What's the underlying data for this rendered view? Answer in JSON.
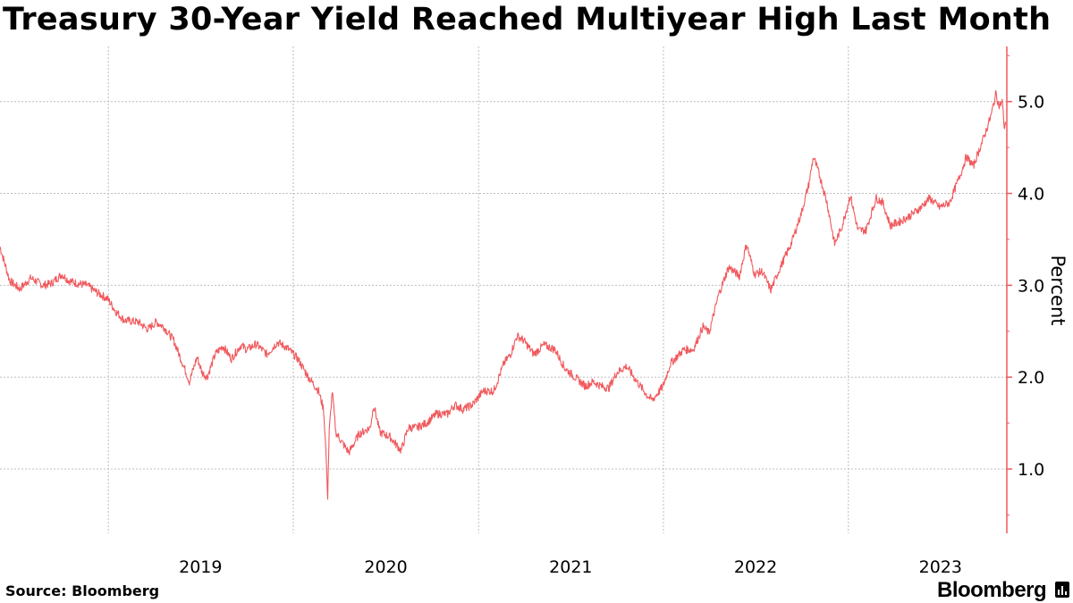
{
  "title": "Treasury 30-Year Yield Reached Multiyear High Last Month",
  "source": "Source:  Bloomberg",
  "brand": "Bloomberg",
  "colors": {
    "line": "#f0595d",
    "axis": "#f0595d",
    "grid": "#bdbdbd",
    "text": "#000000"
  },
  "chart_data": {
    "type": "line",
    "title": "Treasury 30-Year Yield Reached Multiyear High Last Month",
    "xlabel": "",
    "ylabel": "Percent",
    "xlim": [
      "2018-06-01",
      "2023-11-10"
    ],
    "ylim": [
      0.3,
      5.6
    ],
    "yticks": [
      1.0,
      2.0,
      3.0,
      4.0,
      5.0
    ],
    "ytick_labels": [
      "1.0",
      "2.0",
      "3.0",
      "4.0",
      "5.0"
    ],
    "xticks": [
      "2019-01-01",
      "2020-01-01",
      "2021-01-01",
      "2022-01-01",
      "2023-01-01"
    ],
    "xtick_labels": [
      "2019",
      "2020",
      "2021",
      "2022",
      "2023"
    ],
    "grid": true,
    "y_axis_side": "right",
    "series": [
      {
        "name": "",
        "points": [
          [
            "2018-06-01",
            3.42
          ],
          [
            "2018-06-20",
            3.05
          ],
          [
            "2018-07-10",
            2.96
          ],
          [
            "2018-08-01",
            3.08
          ],
          [
            "2018-08-25",
            3.0
          ],
          [
            "2018-09-10",
            3.02
          ],
          [
            "2018-10-01",
            3.12
          ],
          [
            "2018-10-15",
            3.05
          ],
          [
            "2018-11-01",
            3.02
          ],
          [
            "2018-11-20",
            3.0
          ],
          [
            "2018-12-10",
            2.92
          ],
          [
            "2018-12-31",
            2.85
          ],
          [
            "2019-01-15",
            2.72
          ],
          [
            "2019-02-01",
            2.62
          ],
          [
            "2019-03-01",
            2.6
          ],
          [
            "2019-03-20",
            2.52
          ],
          [
            "2019-04-05",
            2.6
          ],
          [
            "2019-04-20",
            2.55
          ],
          [
            "2019-05-10",
            2.4
          ],
          [
            "2019-05-31",
            2.1
          ],
          [
            "2019-06-10",
            1.95
          ],
          [
            "2019-06-25",
            2.22
          ],
          [
            "2019-07-05",
            2.05
          ],
          [
            "2019-07-15",
            2.0
          ],
          [
            "2019-07-31",
            2.25
          ],
          [
            "2019-08-15",
            2.34
          ],
          [
            "2019-09-01",
            2.2
          ],
          [
            "2019-09-20",
            2.35
          ],
          [
            "2019-10-01",
            2.3
          ],
          [
            "2019-10-20",
            2.36
          ],
          [
            "2019-11-10",
            2.25
          ],
          [
            "2019-12-01",
            2.38
          ],
          [
            "2019-12-20",
            2.32
          ],
          [
            "2020-01-10",
            2.2
          ],
          [
            "2020-01-31",
            2.0
          ],
          [
            "2020-02-20",
            1.85
          ],
          [
            "2020-03-01",
            1.65
          ],
          [
            "2020-03-05",
            1.25
          ],
          [
            "2020-03-09",
            0.7
          ],
          [
            "2020-03-12",
            1.4
          ],
          [
            "2020-03-18",
            1.85
          ],
          [
            "2020-03-25",
            1.4
          ],
          [
            "2020-04-05",
            1.3
          ],
          [
            "2020-04-20",
            1.18
          ],
          [
            "2020-05-10",
            1.38
          ],
          [
            "2020-06-01",
            1.45
          ],
          [
            "2020-06-08",
            1.7
          ],
          [
            "2020-06-20",
            1.4
          ],
          [
            "2020-07-10",
            1.35
          ],
          [
            "2020-08-01",
            1.2
          ],
          [
            "2020-08-15",
            1.45
          ],
          [
            "2020-09-01",
            1.45
          ],
          [
            "2020-09-20",
            1.5
          ],
          [
            "2020-10-10",
            1.6
          ],
          [
            "2020-11-01",
            1.6
          ],
          [
            "2020-11-15",
            1.7
          ],
          [
            "2020-12-01",
            1.65
          ],
          [
            "2020-12-20",
            1.7
          ],
          [
            "2021-01-10",
            1.85
          ],
          [
            "2021-01-31",
            1.85
          ],
          [
            "2021-02-20",
            2.15
          ],
          [
            "2021-03-05",
            2.25
          ],
          [
            "2021-03-18",
            2.45
          ],
          [
            "2021-03-31",
            2.4
          ],
          [
            "2021-04-20",
            2.25
          ],
          [
            "2021-05-10",
            2.35
          ],
          [
            "2021-06-01",
            2.3
          ],
          [
            "2021-06-20",
            2.1
          ],
          [
            "2021-07-10",
            2.0
          ],
          [
            "2021-07-31",
            1.9
          ],
          [
            "2021-08-15",
            1.95
          ],
          [
            "2021-09-01",
            1.9
          ],
          [
            "2021-09-15",
            1.88
          ],
          [
            "2021-10-01",
            2.05
          ],
          [
            "2021-10-20",
            2.12
          ],
          [
            "2021-11-10",
            1.95
          ],
          [
            "2021-11-30",
            1.8
          ],
          [
            "2021-12-10",
            1.75
          ],
          [
            "2021-12-31",
            1.9
          ],
          [
            "2022-01-15",
            2.15
          ],
          [
            "2022-02-10",
            2.3
          ],
          [
            "2022-03-01",
            2.3
          ],
          [
            "2022-03-20",
            2.55
          ],
          [
            "2022-04-01",
            2.48
          ],
          [
            "2022-04-20",
            2.9
          ],
          [
            "2022-05-10",
            3.2
          ],
          [
            "2022-05-31",
            3.1
          ],
          [
            "2022-06-14",
            3.45
          ],
          [
            "2022-06-30",
            3.12
          ],
          [
            "2022-07-15",
            3.15
          ],
          [
            "2022-08-01",
            2.95
          ],
          [
            "2022-08-20",
            3.2
          ],
          [
            "2022-09-10",
            3.45
          ],
          [
            "2022-09-30",
            3.78
          ],
          [
            "2022-10-15",
            4.1
          ],
          [
            "2022-10-24",
            4.4
          ],
          [
            "2022-11-05",
            4.2
          ],
          [
            "2022-11-20",
            3.9
          ],
          [
            "2022-12-05",
            3.45
          ],
          [
            "2022-12-20",
            3.65
          ],
          [
            "2023-01-05",
            3.98
          ],
          [
            "2023-01-20",
            3.6
          ],
          [
            "2023-02-05",
            3.6
          ],
          [
            "2023-02-25",
            3.95
          ],
          [
            "2023-03-10",
            3.9
          ],
          [
            "2023-03-25",
            3.65
          ],
          [
            "2023-04-15",
            3.7
          ],
          [
            "2023-05-01",
            3.75
          ],
          [
            "2023-05-25",
            3.85
          ],
          [
            "2023-06-10",
            3.95
          ],
          [
            "2023-06-30",
            3.85
          ],
          [
            "2023-07-20",
            3.9
          ],
          [
            "2023-08-10",
            4.2
          ],
          [
            "2023-08-22",
            4.4
          ],
          [
            "2023-09-05",
            4.3
          ],
          [
            "2023-09-25",
            4.6
          ],
          [
            "2023-10-10",
            4.85
          ],
          [
            "2023-10-20",
            5.1
          ],
          [
            "2023-10-25",
            4.95
          ],
          [
            "2023-11-01",
            5.0
          ],
          [
            "2023-11-05",
            4.72
          ],
          [
            "2023-11-08",
            4.75
          ]
        ]
      }
    ]
  }
}
